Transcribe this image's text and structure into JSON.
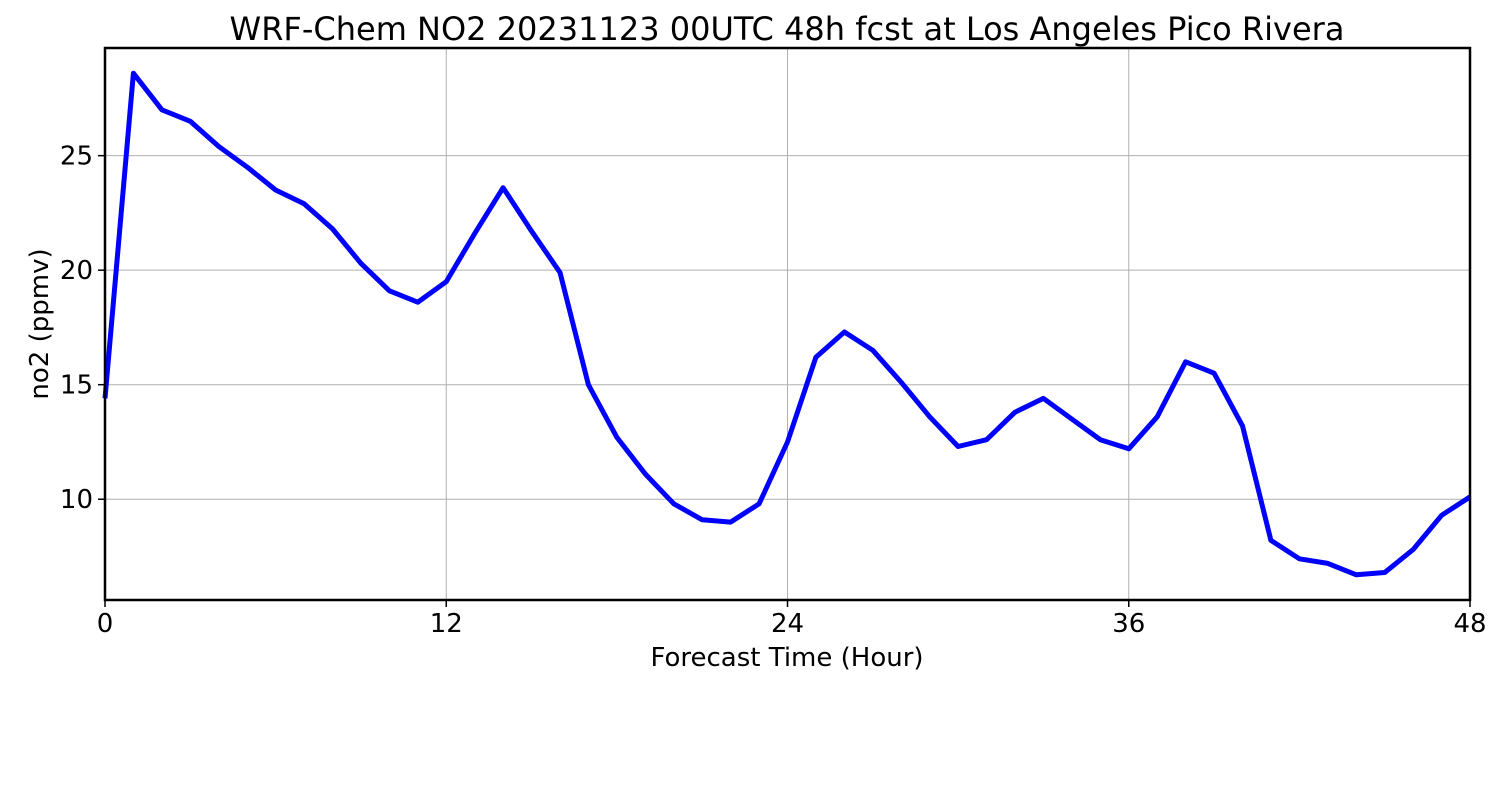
{
  "chart_data": {
    "type": "line",
    "title": "WRF-Chem NO2  20231123 00UTC 48h fcst at Los Angeles Pico Rivera",
    "xlabel": "Forecast Time (Hour)",
    "ylabel": "no2  (ppmv)",
    "xlim": [
      0,
      48
    ],
    "ylim": [
      5.6,
      29.7
    ],
    "xticks": [
      0,
      12,
      24,
      36,
      48
    ],
    "yticks": [
      10,
      15,
      20,
      25
    ],
    "grid": true,
    "legend": "none",
    "series": [
      {
        "color": "#0000ff",
        "x": [
          0,
          1,
          2,
          3,
          4,
          5,
          6,
          7,
          8,
          9,
          10,
          11,
          12,
          13,
          14,
          15,
          16,
          17,
          18,
          19,
          20,
          21,
          22,
          23,
          24,
          25,
          26,
          27,
          28,
          29,
          30,
          31,
          32,
          33,
          34,
          35,
          36,
          37,
          38,
          39,
          40,
          41,
          42,
          43,
          44,
          45,
          46,
          47,
          48
        ],
        "y": [
          14.4,
          28.6,
          27.0,
          26.5,
          25.4,
          24.5,
          23.5,
          22.9,
          21.8,
          20.3,
          19.1,
          18.6,
          19.5,
          21.6,
          23.6,
          21.7,
          19.9,
          15.0,
          12.7,
          11.1,
          9.8,
          9.1,
          9.0,
          9.8,
          12.5,
          16.2,
          17.3,
          16.5,
          15.1,
          13.6,
          12.3,
          12.6,
          13.8,
          14.4,
          13.5,
          12.6,
          12.2,
          13.6,
          16.0,
          15.5,
          13.2,
          8.2,
          7.4,
          7.2,
          6.7,
          6.8,
          7.8,
          9.3,
          10.1
        ]
      }
    ]
  }
}
